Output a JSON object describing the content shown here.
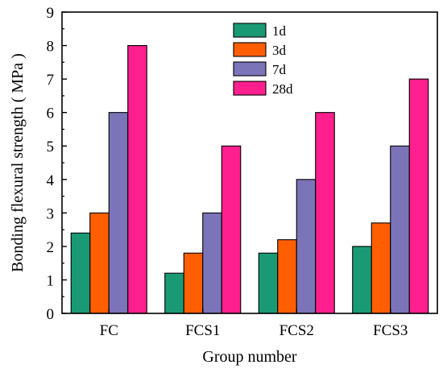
{
  "chart_data": {
    "type": "bar",
    "title": "",
    "xlabel": "Group number",
    "ylabel": "Bonding flexural strength ( MPa )",
    "categories": [
      "FC",
      "FCS1",
      "FCS2",
      "FCS3"
    ],
    "series": [
      {
        "name": "1d",
        "color": "#1a9a74",
        "values": [
          2.4,
          1.2,
          1.8,
          2.0
        ]
      },
      {
        "name": "3d",
        "color": "#ff5f02",
        "values": [
          3.0,
          1.8,
          2.2,
          2.7
        ]
      },
      {
        "name": "7d",
        "color": "#7b74b8",
        "values": [
          6.0,
          3.0,
          4.0,
          5.0
        ]
      },
      {
        "name": "28d",
        "color": "#ff1f8e",
        "values": [
          8.0,
          5.0,
          6.0,
          7.0
        ]
      }
    ],
    "ylim": [
      0,
      9
    ],
    "yticks": [
      "0",
      "1",
      "2",
      "3",
      "4",
      "5",
      "6",
      "7",
      "8",
      "9"
    ],
    "grid": false,
    "legend_position": "top-center"
  }
}
